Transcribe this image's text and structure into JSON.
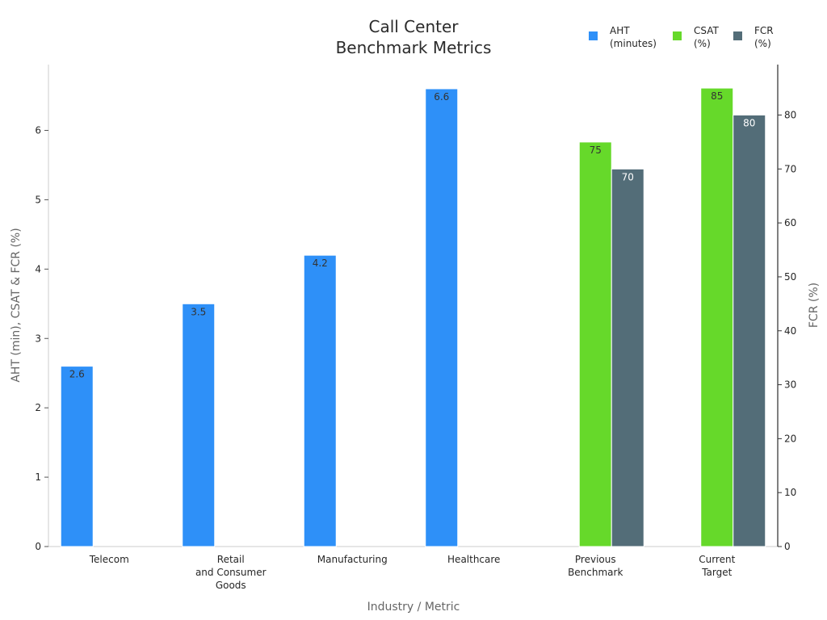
{
  "chart_data": {
    "type": "bar",
    "title": [
      "Call Center",
      "Benchmark Metrics"
    ],
    "xlabel": "Industry / Metric",
    "ylabel_left": "AHT (min), CSAT & FCR (%)",
    "ylabel_right": "FCR (%)",
    "categories": [
      [
        "Telecom"
      ],
      [
        "Retail",
        "and Consumer",
        "Goods"
      ],
      [
        "Manufacturing"
      ],
      [
        "Healthcare"
      ],
      [
        "Previous",
        "Benchmark"
      ],
      [
        "Current",
        "Target"
      ]
    ],
    "ylim_left": [
      0,
      7
    ],
    "ylim_right": [
      0,
      90
    ],
    "yticks_left": [
      0,
      1,
      2,
      3,
      4,
      5,
      6
    ],
    "yticks_right": [
      0,
      10,
      20,
      30,
      40,
      50,
      60,
      70,
      80
    ],
    "legend_position": "top-right",
    "series": [
      {
        "name": [
          "AHT",
          "(minutes)"
        ],
        "color": "#2e90f8",
        "axis": "left",
        "values": [
          2.6,
          3.5,
          4.2,
          6.6,
          null,
          null
        ],
        "labels": [
          "2.6",
          "3.5",
          "4.2",
          "6.6",
          null,
          null
        ],
        "label_color": "#333333"
      },
      {
        "name": [
          "CSAT",
          "(%)"
        ],
        "color": "#66d92a",
        "axis": "right",
        "values": [
          null,
          null,
          null,
          null,
          75,
          85
        ],
        "labels": [
          null,
          null,
          null,
          null,
          "75",
          "85"
        ],
        "label_color": "#333333"
      },
      {
        "name": [
          "FCR",
          "(%)"
        ],
        "color": "#536d78",
        "axis": "right",
        "values": [
          null,
          null,
          null,
          null,
          70,
          80
        ],
        "labels": [
          null,
          null,
          null,
          null,
          "70",
          "80"
        ],
        "label_color": "#ffffff"
      }
    ],
    "grid": false
  }
}
